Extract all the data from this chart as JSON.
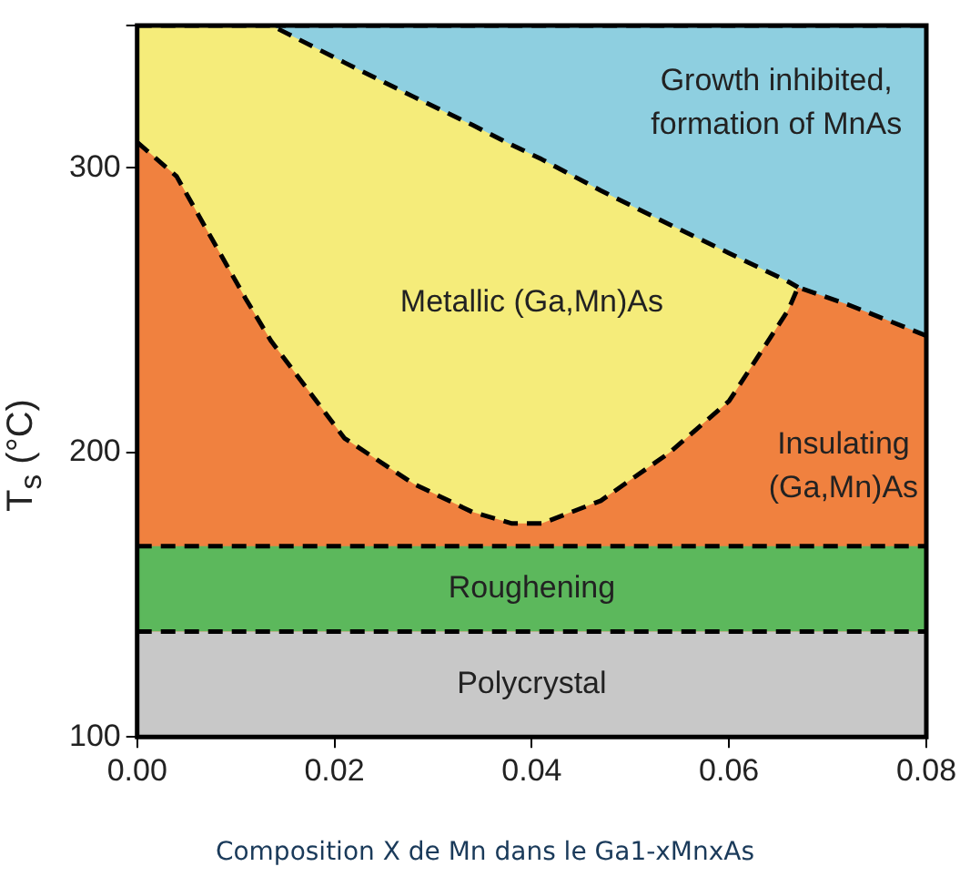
{
  "chart_data": {
    "type": "area",
    "xlabel": "Composition X de Mn dans le Ga1-xMnxAs",
    "ylabel": "T$_{s}$ (°C)",
    "xlim": [
      0,
      0.08
    ],
    "xticks": [
      {
        "value": 0,
        "label": "0.00"
      },
      0.02,
      0.04,
      0.06,
      {
        "value": 0.08,
        "label": "0.08"
      }
    ],
    "ylim": [
      100,
      350
    ],
    "yticks": [
      100,
      200,
      300,
      {
        "value": 350,
        "label": null
      }
    ],
    "legend": false,
    "line_style": "dashed",
    "series": [
      {
        "color": "#8ecfe0",
        "x": [
          0.0136,
          0.08
        ],
        "values": [
          350,
          350
        ]
      },
      {
        "color": "#f5ec7a",
        "x": [
          0,
          0.0136,
          0.021,
          0.028,
          0.034,
          0.038,
          0.041,
          0.047,
          0.054,
          0.06,
          0.066,
          0.067
        ],
        "values": [
          350,
          350,
          337,
          325,
          315,
          308,
          303,
          292,
          280,
          270,
          260,
          258
        ]
      },
      {
        "color": "#f0813f",
        "x": [
          0,
          0.004,
          0.011,
          0.0136,
          0.021,
          0.028,
          0.034,
          0.038,
          0.041,
          0.047,
          0.054,
          0.06,
          0.066,
          0.067,
          0.072,
          0.08
        ],
        "values": [
          309,
          297,
          254,
          239,
          205,
          189,
          179,
          175,
          175,
          183,
          200,
          218,
          250,
          258,
          252,
          241
        ]
      }
    ],
    "bands": [
      {
        "axis": "y",
        "from": 137,
        "to": 167,
        "label": "Roughening",
        "color": "#5cb85c"
      },
      {
        "axis": "y",
        "from": 100,
        "to": 137,
        "label": "Polycrystal",
        "color": "#c8c8c8"
      }
    ],
    "ref_lines": [
      {
        "axis": "y",
        "value": 167,
        "color": "#000000",
        "line_style": "dashed"
      },
      {
        "axis": "y",
        "value": 137,
        "color": "#000000",
        "line_style": "dashed"
      }
    ],
    "annotations": [
      "Growth inhibited,\nformation of MnAs",
      "Metallic (Ga,Mn)As",
      "Insulating\n(Ga,Mn)As"
    ]
  }
}
